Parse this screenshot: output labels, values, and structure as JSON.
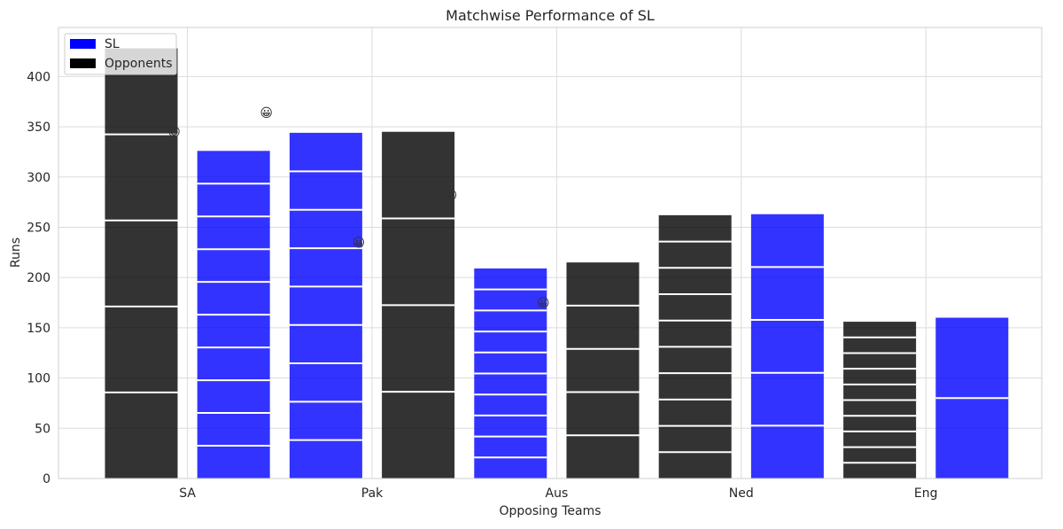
{
  "chart_data": {
    "type": "bar",
    "title": "Matchwise Performance of SL",
    "xlabel": "Opposing Teams",
    "ylabel": "Runs",
    "ylim": [
      0,
      450
    ],
    "yticks": [
      0,
      50,
      100,
      150,
      200,
      250,
      300,
      350,
      400
    ],
    "grid": true,
    "legend_position": "top-left",
    "colors": {
      "SL": "#0000ff",
      "Opponents": "#000000"
    },
    "categories": [
      "SA",
      "Pak",
      "Aus",
      "Ned",
      "Eng"
    ],
    "series": [
      {
        "name": "SL",
        "values": [
          326,
          344,
          209,
          263,
          160
        ]
      },
      {
        "name": "Opponents",
        "values": [
          428,
          345,
          215,
          262,
          156
        ]
      }
    ],
    "bars": [
      {
        "color": "#0000ff",
        "total": 428,
        "segment_size": 85.6,
        "fill_override": "#000000"
      },
      {
        "color": "#0000ff",
        "total": 326,
        "segment_size": 32.6
      },
      {
        "color": "#0000ff",
        "total": 344,
        "segment_size": 38.2
      },
      {
        "color": "#000000",
        "total": 345,
        "segment_size": 86.25
      },
      {
        "color": "#0000ff",
        "total": 209,
        "segment_size": 20.9
      },
      {
        "color": "#000000",
        "total": 215,
        "segment_size": 43
      },
      {
        "color": "#000000",
        "total": 262,
        "segment_size": 26.2
      },
      {
        "color": "#0000ff",
        "total": 263,
        "segment_size": 52.6
      },
      {
        "color": "#000000",
        "total": 156,
        "segment_size": 15.6
      },
      {
        "color": "#0000ff",
        "total": 160,
        "segment_size": 80
      }
    ],
    "emoji_markers": [
      {
        "bar": 0,
        "y": 345,
        "glyph": "😀"
      },
      {
        "bar": 1,
        "y": 364,
        "glyph": "😀"
      },
      {
        "bar": 2,
        "y": 235,
        "glyph": "😀"
      },
      {
        "bar": 3,
        "y": 282,
        "glyph": "😀"
      },
      {
        "bar": 4,
        "y": 175,
        "glyph": "😀"
      }
    ]
  }
}
